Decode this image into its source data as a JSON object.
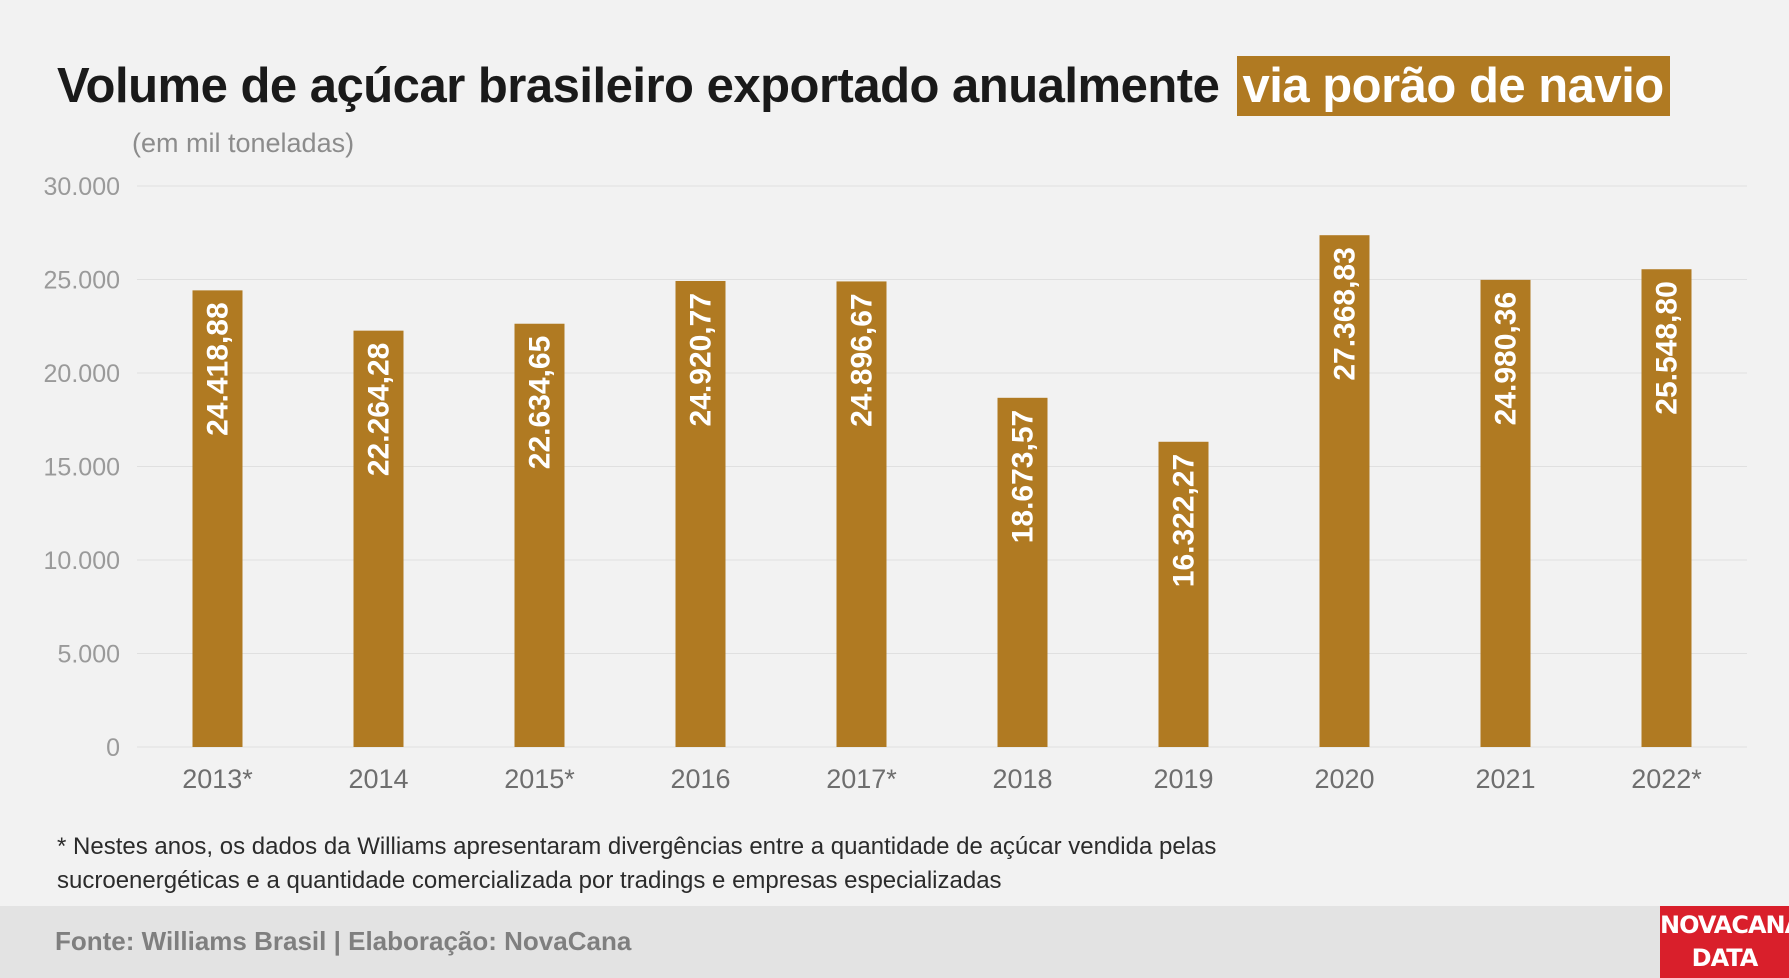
{
  "title": {
    "main": "Volume de açúcar brasileiro exportado anualmente",
    "highlight": "via porão de navio"
  },
  "subtitle": "(em mil toneladas)",
  "chart_data": {
    "type": "bar",
    "categories": [
      "2013*",
      "2014",
      "2015*",
      "2016",
      "2017*",
      "2018",
      "2019",
      "2020",
      "2021",
      "2022*"
    ],
    "values": [
      24418.88,
      22264.28,
      22634.65,
      24920.77,
      24896.67,
      18673.57,
      16322.27,
      27368.83,
      24980.36,
      25548.8
    ],
    "value_labels": [
      "24.418,88",
      "22.264,28",
      "22.634,65",
      "24.920,77",
      "24.896,67",
      "18.673,57",
      "16.322,27",
      "27.368,83",
      "24.980,36",
      "25.548,80"
    ],
    "ylim": [
      0,
      30000
    ],
    "yticks": [
      0,
      5000,
      10000,
      15000,
      20000,
      25000,
      30000
    ],
    "ytick_labels": [
      "0",
      "5.000",
      "10.000",
      "15.000",
      "20.000",
      "25.000",
      "30.000"
    ],
    "grid": true,
    "bar_color": "#b07a22"
  },
  "footnote": {
    "line1": "* Nestes anos, os dados da Williams apresentaram divergências entre a quantidade de açúcar vendida pelas",
    "line2": "sucroenergéticas e a quantidade comercializada por tradings e empresas especializadas"
  },
  "footer": {
    "source": "Fonte: Williams Brasil | Elaboração: NovaCana",
    "logo_line1": "NOVACANA",
    "logo_line2": "DATA"
  },
  "colors": {
    "accent": "#b07a22",
    "brand_red": "#d91f2b",
    "background": "#f2f2f2"
  }
}
